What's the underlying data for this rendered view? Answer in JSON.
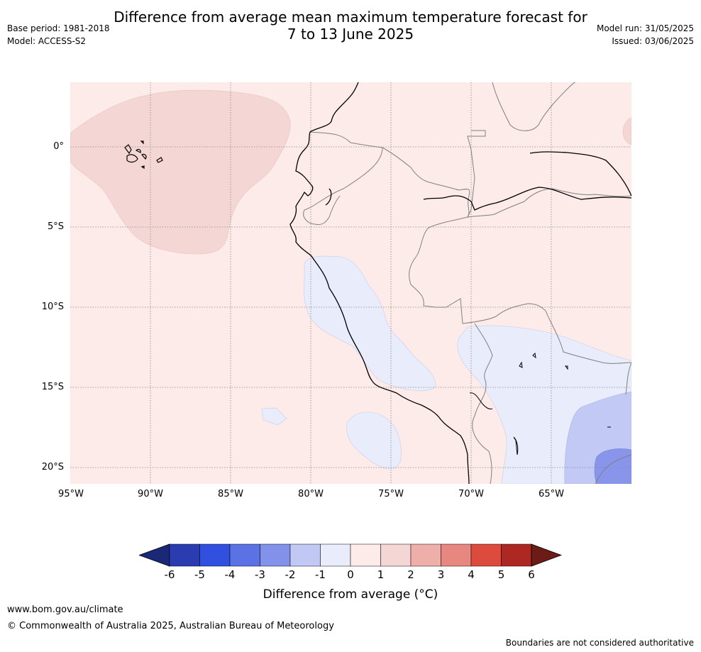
{
  "header": {
    "title_line1": "Difference from average mean maximum temperature forecast for",
    "title_line2": "7 to 13 June 2025",
    "base_period": "Base period: 1981-2018",
    "model": "Model: ACCESS-S2",
    "model_run": "Model run: 31/05/2025",
    "issued": "Issued: 03/06/2025"
  },
  "map": {
    "lat_labels": [
      "0°",
      "5°S",
      "10°S",
      "15°S",
      "20°S"
    ],
    "lon_labels": [
      "95°W",
      "90°W",
      "85°W",
      "80°W",
      "75°W",
      "70°W",
      "65°W"
    ],
    "colors": {
      "anom_0_1": "#fcebe9",
      "anom_1_2": "#f4d7d4",
      "anom_m1_0": "#e8ecfb",
      "anom_m2_m1": "#c1c9f4",
      "anom_m3_m2": "#8895ea",
      "coast": "#000000",
      "border": "#808080",
      "grid": "#888888"
    }
  },
  "colorbar": {
    "ticks": [
      "-6",
      "-5",
      "-4",
      "-3",
      "-2",
      "-1",
      "0",
      "1",
      "2",
      "3",
      "4",
      "5",
      "6"
    ],
    "colors": [
      "#1a2878",
      "#2a3cb0",
      "#3150e0",
      "#5a72e4",
      "#8291ea",
      "#c2c8f4",
      "#e8ecfb",
      "#fcebe9",
      "#f4d7d4",
      "#eeafab",
      "#e8877f",
      "#dc4b3e",
      "#ad2822",
      "#6c1b17"
    ],
    "label": "Difference from average (°C)"
  },
  "footer": {
    "url": "www.bom.gov.au/climate",
    "copyright": "© Commonwealth of Australia 2025, Australian Bureau of Meteorology",
    "disclaimer": "Boundaries are not considered authoritative"
  }
}
